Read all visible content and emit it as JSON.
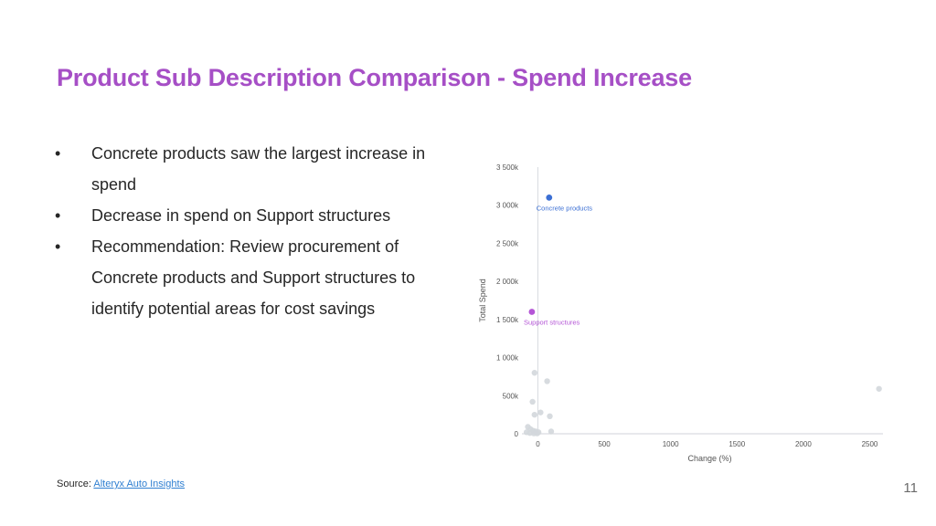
{
  "title": "Product Sub Description Comparison - Spend Increase",
  "bullets": [
    {
      "symbol": "•",
      "text": "Concrete products saw the largest increase in spend"
    },
    {
      "symbol": "•",
      "text": "Decrease in spend on Support structures"
    },
    {
      "symbol": "•",
      "text": "Recommendation: Review procurement of Concrete products and Support structures to identify potential areas for cost savings"
    }
  ],
  "source": {
    "prefix": "Source:",
    "link_text": "Alteryx Auto Insights"
  },
  "page_number": "11",
  "chart_data": {
    "type": "scatter",
    "xlabel": "Change (%)",
    "ylabel": "Total Spend",
    "xlim": [
      -120,
      2600
    ],
    "ylim": [
      0,
      3500000
    ],
    "x_ticks": [
      0,
      500,
      1000,
      1500,
      2000,
      2500
    ],
    "x_tick_labels": [
      "0",
      "500",
      "1000",
      "1500",
      "2000",
      "2500"
    ],
    "y_ticks": [
      0,
      500000,
      1000000,
      1500000,
      2000000,
      2500000,
      3000000,
      3500000
    ],
    "y_tick_labels": [
      "0",
      "500k",
      "1 000k",
      "1 500k",
      "2 000k",
      "2 500k",
      "3 000k",
      "3 500k"
    ],
    "highlighted": [
      {
        "label": "Concrete products",
        "x": 85,
        "y": 3100000,
        "color": "#3b6fd4"
      },
      {
        "label": "Support structures",
        "x": -45,
        "y": 1600000,
        "color": "#b455d6"
      }
    ],
    "others": {
      "color": "#d3d7dc",
      "points": [
        {
          "x": -25,
          "y": 800000
        },
        {
          "x": 70,
          "y": 690000
        },
        {
          "x": 2570,
          "y": 590000
        },
        {
          "x": -40,
          "y": 420000
        },
        {
          "x": 20,
          "y": 280000
        },
        {
          "x": -25,
          "y": 250000
        },
        {
          "x": 90,
          "y": 230000
        },
        {
          "x": -75,
          "y": 90000
        },
        {
          "x": -55,
          "y": 60000
        },
        {
          "x": -35,
          "y": 40000
        },
        {
          "x": -15,
          "y": 30000
        },
        {
          "x": 5,
          "y": 20000
        },
        {
          "x": 100,
          "y": 30000
        },
        {
          "x": -85,
          "y": 20000
        },
        {
          "x": -60,
          "y": 10000
        },
        {
          "x": -30,
          "y": 5000
        },
        {
          "x": -5,
          "y": 5000
        }
      ]
    },
    "reference_line_x": 0,
    "grid": false
  }
}
